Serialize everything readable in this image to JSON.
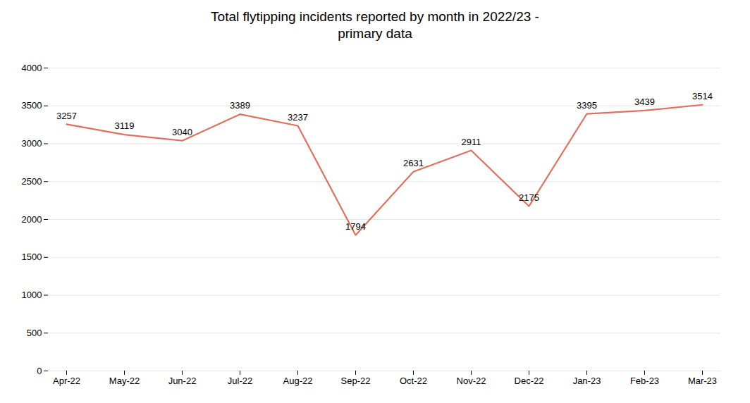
{
  "chart_data": {
    "type": "line",
    "title": "Total flytipping incidents reported by month in 2022/23 -\nprimary data",
    "categories": [
      "Apr-22",
      "May-22",
      "Jun-22",
      "Jul-22",
      "Aug-22",
      "Sep-22",
      "Oct-22",
      "Nov-22",
      "Dec-22",
      "Jan-23",
      "Feb-23",
      "Mar-23"
    ],
    "values": [
      3257,
      3119,
      3040,
      3389,
      3237,
      1794,
      2631,
      2911,
      2175,
      3395,
      3439,
      3514
    ],
    "color": "#E07060",
    "ylim": [
      0,
      4000
    ],
    "yticks": [
      0,
      500,
      1000,
      1500,
      2000,
      2500,
      3000,
      3500,
      4000
    ],
    "grid": true,
    "data_labels": true
  }
}
